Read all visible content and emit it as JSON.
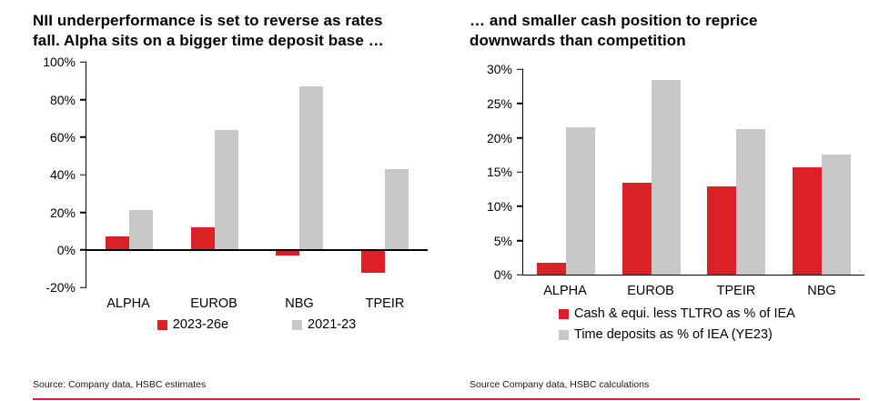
{
  "colors": {
    "red": "#da2128",
    "gray": "#c8c8c8",
    "axis": "#000000"
  },
  "chart_data": [
    {
      "type": "bar",
      "title": "NII underperformance is set to reverse as rates\nfall. Alpha sits on a bigger time deposit base …",
      "categories": [
        "ALPHA",
        "EUROB",
        "NBG",
        "TPEIR"
      ],
      "series": [
        {
          "name": "2023-26e",
          "color": "#da2128",
          "values": [
            7,
            12,
            -3,
            -12
          ]
        },
        {
          "name": "2021-23",
          "color": "#c8c8c8",
          "values": [
            21,
            64,
            87,
            43
          ]
        }
      ],
      "ylim": [
        -20,
        100
      ],
      "yticks": [
        -20,
        0,
        20,
        40,
        60,
        80,
        100
      ],
      "ytick_suffix": "%",
      "xlabel": "",
      "ylabel": "",
      "grid": false,
      "legend_position": "bottom-horizontal",
      "source": "Source: Company data, HSBC estimates"
    },
    {
      "type": "bar",
      "title": "… and smaller cash position to reprice\ndownwards than competition",
      "categories": [
        "ALPHA",
        "EUROB",
        "TPEIR",
        "NBG"
      ],
      "series": [
        {
          "name": "Cash & equi. less TLTRO as % of IEA",
          "color": "#da2128",
          "values": [
            1.7,
            13.5,
            12.9,
            15.7
          ]
        },
        {
          "name": "Time deposits as % of IEA (YE23)",
          "color": "#c8c8c8",
          "values": [
            21.5,
            28.5,
            21.3,
            17.5
          ]
        }
      ],
      "ylim": [
        0,
        30
      ],
      "yticks": [
        0,
        5,
        10,
        15,
        20,
        25,
        30
      ],
      "ytick_suffix": "%",
      "xlabel": "",
      "ylabel": "",
      "grid": false,
      "legend_position": "bottom-stacked",
      "source": "Source Company data, HSBC calculations"
    }
  ]
}
